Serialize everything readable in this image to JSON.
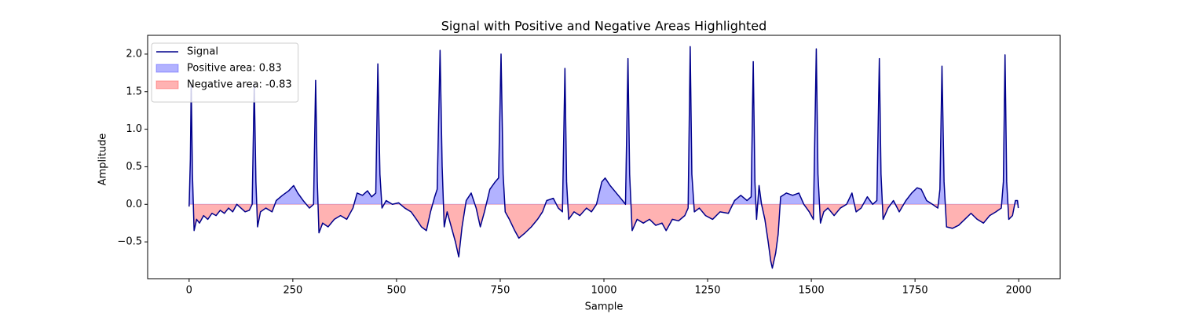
{
  "chart_data": {
    "type": "line",
    "title": "Signal with Positive and Negative Areas Highlighted",
    "xlabel": "Sample",
    "ylabel": "Amplitude",
    "x": [
      0,
      3,
      5,
      8,
      12,
      18,
      25,
      35,
      45,
      55,
      65,
      75,
      85,
      95,
      105,
      115,
      125,
      135,
      145,
      152,
      157,
      161,
      165,
      172,
      185,
      200,
      210,
      225,
      240,
      252,
      262,
      275,
      290,
      300,
      305,
      309,
      313,
      322,
      335,
      350,
      365,
      380,
      395,
      405,
      418,
      430,
      440,
      450,
      455,
      460,
      465,
      475,
      490,
      505,
      520,
      535,
      548,
      560,
      572,
      582,
      592,
      598,
      605,
      610,
      615,
      622,
      632,
      642,
      650,
      658,
      668,
      680,
      692,
      702,
      712,
      725,
      738,
      746,
      752,
      757,
      762,
      772,
      785,
      795,
      810,
      825,
      840,
      852,
      862,
      878,
      890,
      900,
      906,
      910,
      915,
      928,
      942,
      958,
      970,
      982,
      995,
      1003,
      1015,
      1030,
      1045,
      1052,
      1058,
      1062,
      1068,
      1080,
      1095,
      1110,
      1125,
      1140,
      1150,
      1165,
      1180,
      1195,
      1203,
      1208,
      1212,
      1218,
      1230,
      1245,
      1262,
      1280,
      1300,
      1315,
      1330,
      1345,
      1355,
      1360,
      1364,
      1368,
      1374,
      1380,
      1388,
      1396,
      1402,
      1406,
      1414,
      1420,
      1426,
      1440,
      1455,
      1470,
      1482,
      1495,
      1505,
      1512,
      1516,
      1522,
      1530,
      1540,
      1555,
      1570,
      1585,
      1598,
      1608,
      1620,
      1635,
      1648,
      1658,
      1664,
      1668,
      1673,
      1685,
      1698,
      1712,
      1728,
      1742,
      1755,
      1765,
      1778,
      1792,
      1805,
      1810,
      1815,
      1820,
      1826,
      1840,
      1855,
      1870,
      1885,
      1900,
      1915,
      1930,
      1945,
      1958,
      1963,
      1967,
      1971,
      1976,
      1985,
      1992,
      1997,
      1999
    ],
    "series": [
      {
        "name": "Signal",
        "color": "#00008b",
        "values": [
          -0.03,
          0.6,
          1.6,
          0.4,
          -0.35,
          -0.2,
          -0.25,
          -0.15,
          -0.2,
          -0.12,
          -0.15,
          -0.08,
          -0.12,
          -0.05,
          -0.1,
          0.0,
          -0.05,
          -0.1,
          -0.08,
          0.0,
          1.6,
          0.3,
          -0.3,
          -0.1,
          -0.05,
          -0.1,
          0.05,
          0.12,
          0.18,
          0.25,
          0.15,
          0.05,
          -0.05,
          0.0,
          1.65,
          0.3,
          -0.38,
          -0.25,
          -0.3,
          -0.2,
          -0.15,
          -0.2,
          -0.05,
          0.15,
          0.12,
          0.18,
          0.1,
          0.15,
          1.87,
          0.4,
          -0.05,
          0.05,
          0.0,
          0.02,
          -0.05,
          -0.1,
          -0.2,
          -0.3,
          -0.35,
          -0.1,
          0.1,
          0.2,
          2.05,
          0.5,
          -0.3,
          -0.1,
          -0.3,
          -0.5,
          -0.7,
          -0.3,
          0.05,
          0.15,
          -0.05,
          -0.3,
          -0.1,
          0.2,
          0.3,
          0.35,
          2.0,
          0.4,
          -0.1,
          -0.2,
          -0.35,
          -0.45,
          -0.38,
          -0.3,
          -0.2,
          -0.1,
          0.05,
          0.08,
          -0.05,
          -0.1,
          1.81,
          0.3,
          -0.2,
          -0.1,
          -0.15,
          -0.05,
          -0.1,
          0.0,
          0.3,
          0.35,
          0.25,
          0.15,
          0.05,
          0.0,
          1.94,
          0.4,
          -0.35,
          -0.2,
          -0.25,
          -0.2,
          -0.28,
          -0.25,
          -0.35,
          -0.2,
          -0.22,
          -0.15,
          -0.05,
          2.1,
          0.4,
          -0.1,
          -0.05,
          -0.15,
          -0.2,
          -0.1,
          -0.12,
          0.05,
          0.12,
          0.05,
          0.1,
          1.9,
          0.3,
          -0.2,
          0.25,
          0.0,
          -0.2,
          -0.5,
          -0.75,
          -0.85,
          -0.65,
          -0.4,
          0.1,
          0.15,
          0.12,
          0.15,
          0.0,
          -0.1,
          -0.2,
          2.07,
          0.4,
          -0.25,
          -0.1,
          -0.05,
          -0.15,
          -0.05,
          0.0,
          0.15,
          -0.1,
          -0.05,
          0.1,
          0.0,
          0.05,
          1.94,
          0.4,
          -0.2,
          -0.05,
          0.05,
          -0.1,
          0.05,
          0.15,
          0.22,
          0.2,
          0.05,
          0.0,
          -0.05,
          0.2,
          1.84,
          0.3,
          -0.3,
          -0.32,
          -0.28,
          -0.2,
          -0.12,
          -0.2,
          -0.25,
          -0.15,
          -0.1,
          -0.05,
          0.3,
          1.99,
          0.3,
          -0.2,
          -0.15,
          0.05,
          0.05,
          -0.05
        ]
      }
    ],
    "fills": [
      {
        "name": "Positive area: 0.83",
        "color": "#0000ff"
      },
      {
        "name": "Negative area: -0.83",
        "color": "#ff0000"
      }
    ],
    "xlim": [
      -100,
      2100
    ],
    "xticks": [
      0,
      250,
      500,
      750,
      1000,
      1250,
      1500,
      1750,
      2000
    ],
    "ylim": [
      -0.99,
      2.25
    ],
    "yticks": [
      {
        "value": -0.5,
        "label": "−0.5"
      },
      {
        "value": 0,
        "label": "0.0"
      },
      0.5,
      {
        "value": 1,
        "label": "1.0"
      },
      1.5,
      {
        "value": 2,
        "label": "2.0"
      }
    ],
    "legend": "upper left"
  }
}
